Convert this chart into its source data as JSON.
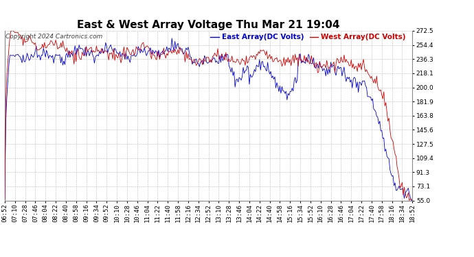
{
  "title": "East & West Array Voltage Thu Mar 21 19:04",
  "copyright": "Copyright 2024 Cartronics.com",
  "legend_east": "East Array(DC Volts)",
  "legend_west": "West Array(DC Volts)",
  "east_color": "#0000cc",
  "west_color": "#cc0000",
  "bg_color": "#ffffff",
  "grid_color": "#bbbbbb",
  "yticks": [
    55.0,
    73.1,
    91.3,
    109.4,
    127.5,
    145.6,
    163.8,
    181.9,
    200.0,
    218.1,
    236.3,
    254.4,
    272.5
  ],
  "ymin": 55.0,
  "ymax": 272.5,
  "title_fontsize": 11,
  "copyright_fontsize": 6.5,
  "legend_fontsize": 7.5,
  "tick_fontsize": 6.5,
  "xtick_labels": [
    "06:52",
    "07:10",
    "07:28",
    "07:46",
    "08:04",
    "08:22",
    "08:40",
    "08:58",
    "09:16",
    "09:34",
    "09:52",
    "10:10",
    "10:28",
    "10:46",
    "11:04",
    "11:22",
    "11:40",
    "11:58",
    "12:16",
    "12:34",
    "12:52",
    "13:10",
    "13:28",
    "13:46",
    "14:04",
    "14:22",
    "14:40",
    "14:58",
    "15:16",
    "15:34",
    "15:52",
    "16:10",
    "16:28",
    "16:46",
    "17:04",
    "17:22",
    "17:40",
    "17:58",
    "18:16",
    "18:34",
    "18:52"
  ]
}
